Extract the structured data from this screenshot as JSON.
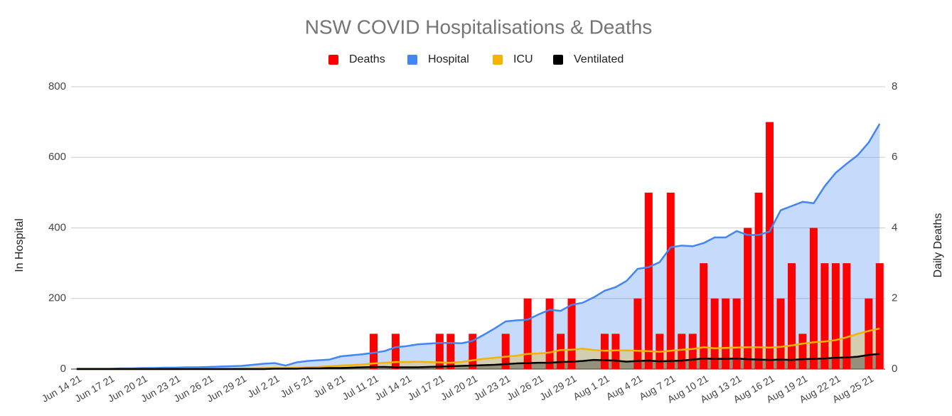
{
  "chart_data": {
    "type": "combo",
    "title": "NSW COVID Hospitalisations & Deaths",
    "y_label": "In Hospital",
    "y2_label": "Daily Deaths",
    "legend": "top",
    "grid": true,
    "categories": [
      "Jun 14 21",
      null,
      null,
      "Jun 17 21",
      null,
      null,
      "Jun 20 21",
      null,
      null,
      "Jun 23 21",
      null,
      null,
      "Jun 26 21",
      null,
      null,
      "Jun 29 21",
      null,
      null,
      "Jul 2 21",
      null,
      null,
      "Jul 5 21",
      null,
      null,
      "Jul 8 21",
      null,
      null,
      "Jul 11 21",
      null,
      null,
      "Jul 14 21",
      null,
      null,
      "Jul 17 21",
      null,
      null,
      "Jul 20 21",
      null,
      null,
      "Jul 23 21",
      null,
      null,
      "Jul 26 21",
      null,
      null,
      "Jul 29 21",
      null,
      null,
      "Aug 1 21",
      null,
      null,
      "Aug 4 21",
      null,
      null,
      "Aug 7 21",
      null,
      null,
      "Aug 10 21",
      null,
      null,
      "Aug 13 21",
      null,
      null,
      "Aug 16 21",
      null,
      null,
      "Aug 19 21",
      null,
      null,
      "Aug 22 21",
      null,
      null,
      "Aug 25 21",
      null
    ],
    "ylim": [
      0,
      800
    ],
    "yticks": [
      0,
      200,
      400,
      600,
      800
    ],
    "y2lim": [
      0,
      8
    ],
    "y2ticks": [
      0,
      2,
      4,
      6,
      8
    ],
    "series": [
      {
        "name": "Deaths",
        "type": "bar",
        "axis": "y2",
        "color": "#ff0000",
        "values": [
          0,
          0,
          0,
          0,
          0,
          0,
          0,
          0,
          0,
          0,
          0,
          0,
          0,
          0,
          0,
          0,
          0,
          0,
          0,
          0,
          0,
          0,
          0,
          0,
          0,
          0,
          0,
          1,
          0,
          1,
          0,
          0,
          0,
          1,
          1,
          0,
          1,
          0,
          0,
          1,
          0,
          2,
          0,
          2,
          1,
          2,
          0,
          0,
          1,
          1,
          0,
          2,
          5,
          1,
          5,
          1,
          1,
          3,
          2,
          2,
          2,
          4,
          5,
          7,
          2,
          3,
          1,
          4,
          3,
          3,
          3,
          0,
          2,
          3
        ]
      },
      {
        "name": "Hospital",
        "type": "area",
        "color": "#4285f4",
        "values": [
          1,
          1,
          1,
          1,
          2,
          2,
          3,
          3,
          4,
          4,
          5,
          5,
          6,
          7,
          8,
          9,
          12,
          15,
          17,
          10,
          19,
          23,
          25,
          27,
          36,
          39,
          42,
          46,
          51,
          62,
          65,
          70,
          72,
          74,
          74,
          73,
          80,
          97,
          115,
          135,
          138,
          140,
          155,
          168,
          165,
          182,
          188,
          203,
          222,
          232,
          250,
          284,
          289,
          303,
          345,
          350,
          348,
          357,
          373,
          373,
          391,
          380,
          380,
          390,
          450,
          462,
          474,
          470,
          518,
          556,
          582,
          606,
          642,
          695
        ]
      },
      {
        "name": "ICU",
        "type": "area",
        "color": "#f4b400",
        "values": [
          0,
          0,
          0,
          0,
          0,
          0,
          0,
          0,
          0,
          0,
          1,
          1,
          1,
          1,
          1,
          2,
          2,
          3,
          3,
          3,
          4,
          5,
          6,
          8,
          10,
          11,
          13,
          16,
          18,
          20,
          20,
          21,
          20,
          19,
          18,
          20,
          25,
          29,
          32,
          35,
          38,
          43,
          44,
          47,
          54,
          55,
          58,
          54,
          52,
          53,
          53,
          52,
          51,
          49,
          52,
          55,
          57,
          62,
          59,
          60,
          61,
          62,
          62,
          61,
          63,
          67,
          72,
          76,
          78,
          82,
          90,
          100,
          108,
          115
        ]
      },
      {
        "name": "Ventilated",
        "type": "area",
        "color": "#000000",
        "values": [
          0,
          0,
          0,
          0,
          0,
          0,
          0,
          0,
          0,
          0,
          0,
          0,
          0,
          0,
          0,
          0,
          0,
          0,
          1,
          1,
          1,
          2,
          2,
          3,
          3,
          4,
          5,
          6,
          6,
          5,
          5,
          5,
          6,
          7,
          8,
          9,
          10,
          11,
          12,
          14,
          16,
          17,
          18,
          18,
          20,
          21,
          23,
          26,
          25,
          24,
          21,
          23,
          24,
          22,
          23,
          24,
          27,
          30,
          29,
          29,
          30,
          28,
          27,
          26,
          27,
          26,
          28,
          29,
          30,
          32,
          33,
          35,
          40,
          43
        ]
      }
    ]
  }
}
